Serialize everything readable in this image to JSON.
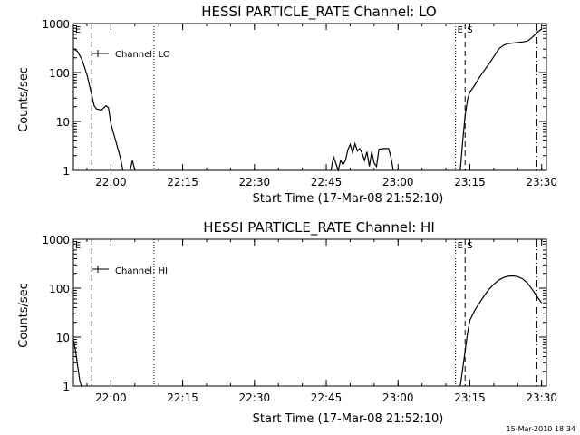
{
  "chart_data": [
    {
      "type": "line",
      "title": "HESSI PARTICLE_RATE Channel: LO",
      "xlabel": "Start Time (17-Mar-08 21:52:10)",
      "ylabel": "Counts/sec",
      "yscale": "log",
      "ylim": [
        1,
        1000
      ],
      "y_ticks": [
        "1",
        "10",
        "100",
        "1000"
      ],
      "xlim": [
        "21:52:10",
        "23:31"
      ],
      "x_ticks": [
        "22:00",
        "22:15",
        "22:30",
        "22:45",
        "23:00",
        "23:15",
        "23:30"
      ],
      "legend": "Channel: LO",
      "legend_position": "top-left",
      "grid": false,
      "markers": [
        {
          "label": "E",
          "time": "21:52:10",
          "style": "dotted"
        },
        {
          "label": "",
          "time": "21:56",
          "style": "dashed"
        },
        {
          "label": "",
          "time": "22:09",
          "style": "dotted"
        },
        {
          "label": "E",
          "time": "23:12",
          "style": "dotted"
        },
        {
          "label": "S",
          "time": "23:14",
          "style": "dashed"
        },
        {
          "label": "",
          "time": "23:29",
          "style": "dashdot"
        }
      ],
      "series": [
        {
          "segments": [
            [
              [
                "21:52:10",
                310
              ],
              [
                "21:53",
                270
              ],
              [
                "21:54",
                180
              ],
              [
                "21:55",
                90
              ],
              [
                "21:56",
                35
              ],
              [
                "21:56:30",
                21
              ],
              [
                "21:57",
                18
              ],
              [
                "21:58",
                17
              ],
              [
                "21:59",
                21
              ],
              [
                "21:59:30",
                19
              ],
              [
                "22:00",
                9
              ],
              [
                "22:01",
                4
              ],
              [
                "22:02",
                1.8
              ],
              [
                "22:02:30",
                1
              ]
            ],
            [
              [
                "22:04",
                1
              ],
              [
                "22:04:30",
                1.6
              ],
              [
                "22:05",
                1
              ]
            ],
            [
              [
                "22:46",
                1
              ],
              [
                "22:46:30",
                1.9
              ],
              [
                "22:47",
                1.4
              ],
              [
                "22:47:30",
                1
              ],
              [
                "22:48",
                1.6
              ],
              [
                "22:48:30",
                1.3
              ],
              [
                "22:49",
                1.6
              ],
              [
                "22:49:30",
                2.6
              ],
              [
                "22:50",
                3.4
              ],
              [
                "22:50:30",
                2.3
              ],
              [
                "22:51",
                3.5
              ],
              [
                "22:51:30",
                2.5
              ],
              [
                "22:52",
                2.8
              ],
              [
                "22:52:30",
                2.2
              ],
              [
                "22:53",
                1.6
              ],
              [
                "22:53:30",
                2.4
              ],
              [
                "22:54",
                1.2
              ],
              [
                "22:54:30",
                2.4
              ],
              [
                "22:55",
                1.4
              ],
              [
                "22:55:30",
                1.2
              ],
              [
                "22:56",
                2.7
              ],
              [
                "22:57",
                2.8
              ],
              [
                "22:58",
                2.8
              ],
              [
                "22:58:30",
                1.9
              ],
              [
                "22:59",
                1
              ]
            ],
            [
              [
                "23:13",
                1
              ],
              [
                "23:13:30",
                4
              ],
              [
                "23:14",
                13
              ],
              [
                "23:14:30",
                28
              ],
              [
                "23:15",
                40
              ],
              [
                "23:16",
                55
              ],
              [
                "23:17",
                80
              ],
              [
                "23:18",
                110
              ],
              [
                "23:19",
                150
              ],
              [
                "23:20",
                210
              ],
              [
                "23:21",
                300
              ],
              [
                "23:22",
                360
              ],
              [
                "23:23",
                390
              ],
              [
                "23:24",
                400
              ],
              [
                "23:25",
                410
              ],
              [
                "23:26",
                420
              ],
              [
                "23:27",
                440
              ],
              [
                "23:28",
                520
              ],
              [
                "23:29",
                650
              ],
              [
                "23:30",
                780
              ]
            ]
          ]
        }
      ]
    },
    {
      "type": "line",
      "title": "HESSI PARTICLE_RATE Channel: HI",
      "xlabel": "Start Time (17-Mar-08 21:52:10)",
      "ylabel": "Counts/sec",
      "yscale": "log",
      "ylim": [
        1,
        1000
      ],
      "y_ticks": [
        "1",
        "10",
        "100",
        "1000"
      ],
      "xlim": [
        "21:52:10",
        "23:31"
      ],
      "x_ticks": [
        "22:00",
        "22:15",
        "22:30",
        "22:45",
        "23:00",
        "23:15",
        "23:30"
      ],
      "legend": "Channel: HI",
      "legend_position": "top-left",
      "grid": false,
      "markers": [
        {
          "label": "E",
          "time": "21:52:10",
          "style": "dotted"
        },
        {
          "label": "",
          "time": "21:56",
          "style": "dashed"
        },
        {
          "label": "",
          "time": "22:09",
          "style": "dotted"
        },
        {
          "label": "E",
          "time": "23:12",
          "style": "dotted"
        },
        {
          "label": "S",
          "time": "23:14",
          "style": "dashed"
        },
        {
          "label": "",
          "time": "23:29",
          "style": "dashdot"
        }
      ],
      "series": [
        {
          "segments": [
            [
              [
                "21:52:10",
                9
              ],
              [
                "21:52:40",
                5
              ],
              [
                "21:53",
                2.8
              ],
              [
                "21:53:30",
                1.3
              ],
              [
                "21:53:50",
                1
              ]
            ],
            [
              [
                "23:13",
                1
              ],
              [
                "23:13:40",
                3
              ],
              [
                "23:14:30",
                12
              ],
              [
                "23:15",
                22
              ],
              [
                "23:16",
                35
              ],
              [
                "23:17",
                50
              ],
              [
                "23:18",
                70
              ],
              [
                "23:19",
                95
              ],
              [
                "23:20",
                120
              ],
              [
                "23:21",
                145
              ],
              [
                "23:22",
                165
              ],
              [
                "23:23",
                175
              ],
              [
                "23:24",
                178
              ],
              [
                "23:25",
                172
              ],
              [
                "23:26",
                155
              ],
              [
                "23:27",
                128
              ],
              [
                "23:28",
                95
              ],
              [
                "23:29",
                68
              ],
              [
                "23:30",
                50
              ]
            ]
          ]
        }
      ]
    }
  ],
  "footer": {
    "timestamp": "15-Mar-2010 18:34"
  }
}
